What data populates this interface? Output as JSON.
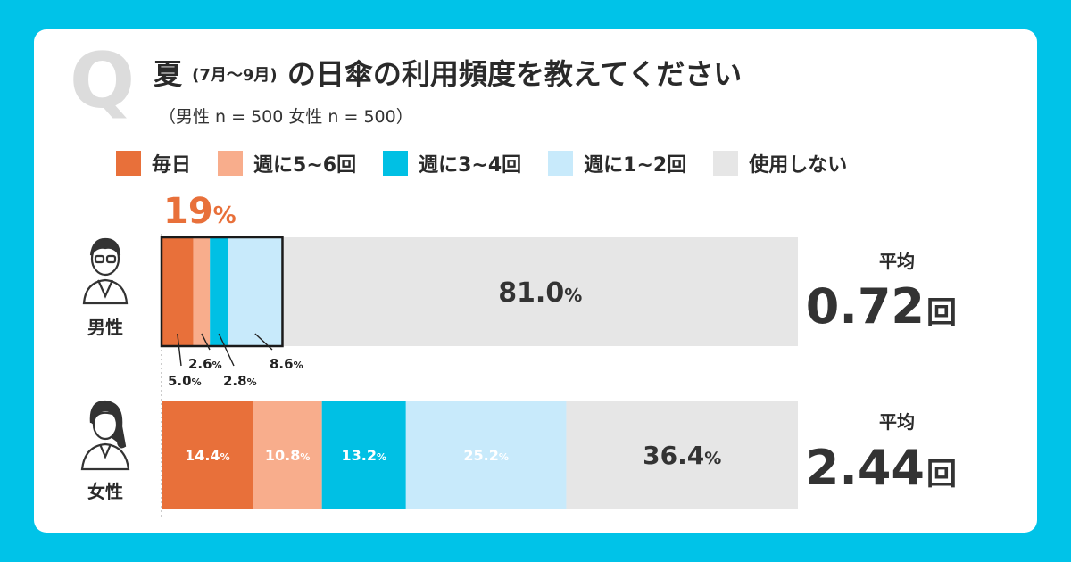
{
  "header": {
    "q_mark": "Q",
    "title_main": "夏",
    "title_period": "(7月～9月)",
    "title_rest": "の日傘の利用頻度を教えてください",
    "subtitle": "（男性 n = 500 女性 n = 500）"
  },
  "colors": {
    "daily": "#e8703a",
    "w56": "#f8ad8c",
    "w34": "#00c0e4",
    "w12": "#c8eafb",
    "never": "#e6e6e6",
    "accent": "#e8703a"
  },
  "chart_data": {
    "type": "bar",
    "stacked": true,
    "orientation": "horizontal",
    "title": "夏 (7月～9月) の日傘の利用頻度を教えてください",
    "categories": [
      "男性",
      "女性"
    ],
    "series": [
      {
        "name": "毎日",
        "values": [
          5.0,
          14.4
        ]
      },
      {
        "name": "週に5~6回",
        "values": [
          2.6,
          10.8
        ]
      },
      {
        "name": "週に3~4回",
        "values": [
          2.8,
          13.2
        ]
      },
      {
        "name": "週に1~2回",
        "values": [
          8.6,
          25.2
        ]
      },
      {
        "name": "使用しない",
        "values": [
          81.0,
          36.4
        ]
      }
    ],
    "value_labels": {
      "男性": [
        "5.0",
        "2.6",
        "2.8",
        "8.6",
        "81.0"
      ],
      "女性": [
        "14.4",
        "10.8",
        "13.2",
        "25.2",
        "36.4"
      ]
    },
    "unit": "%",
    "xlim": [
      0,
      100
    ],
    "male_user_total_label": "19",
    "averages": [
      {
        "label": "平均",
        "value": "0.72",
        "unit": "回"
      },
      {
        "label": "平均",
        "value": "2.44",
        "unit": "回"
      }
    ]
  }
}
